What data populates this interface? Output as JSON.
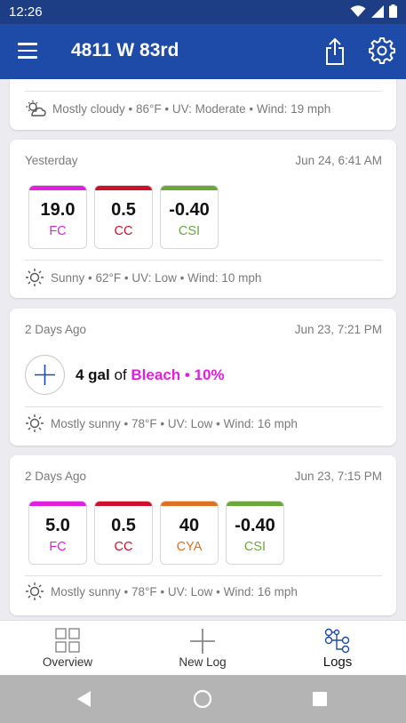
{
  "status_bar": {
    "time": "12:26"
  },
  "app_bar": {
    "title": "4811 W 83rd"
  },
  "cards": [
    {
      "type": "weather-only",
      "weather": "Mostly cloudy • 86°F • UV: Moderate • Wind: 19 mph",
      "weather_icon": "partly-cloudy-icon"
    },
    {
      "type": "reading",
      "when": "Yesterday",
      "timestamp": "Jun 24, 6:41 AM",
      "chips": [
        {
          "value": "19.0",
          "label": "FC",
          "color": "#e01fe0"
        },
        {
          "value": "0.5",
          "label": "CC",
          "color": "#d0102a"
        },
        {
          "value": "-0.40",
          "label": "CSI",
          "color": "#6aa83a"
        }
      ],
      "weather": "Sunny • 62°F • UV: Low • Wind: 10 mph",
      "weather_icon": "sun-icon"
    },
    {
      "type": "addition",
      "when": "2 Days Ago",
      "timestamp": "Jun 23, 7:21 PM",
      "amount": "4 gal",
      "of": "of",
      "chemical": "Bleach • 10%",
      "chemical_color": "#e01fe0",
      "weather": "Mostly sunny • 78°F • UV: Low • Wind: 16 mph",
      "weather_icon": "sun-icon"
    },
    {
      "type": "reading",
      "when": "2 Days Ago",
      "timestamp": "Jun 23, 7:15 PM",
      "chips": [
        {
          "value": "5.0",
          "label": "FC",
          "color": "#e01fe0"
        },
        {
          "value": "0.5",
          "label": "CC",
          "color": "#d0102a"
        },
        {
          "value": "40",
          "label": "CYA",
          "color": "#e07020"
        },
        {
          "value": "-0.40",
          "label": "CSI",
          "color": "#6aa83a"
        }
      ],
      "weather": "Mostly sunny • 78°F • UV: Low • Wind: 16 mph",
      "weather_icon": "sun-icon"
    }
  ],
  "bottom_nav": [
    {
      "label": "Overview",
      "icon": "grid-icon"
    },
    {
      "label": "New Log",
      "icon": "plus-icon"
    },
    {
      "label": "Logs",
      "icon": "logs-icon",
      "active": true
    }
  ],
  "colors": {
    "appbar": "#1f4ba8",
    "statusbar": "#1d3d85",
    "accent": "#1f4ba8"
  }
}
